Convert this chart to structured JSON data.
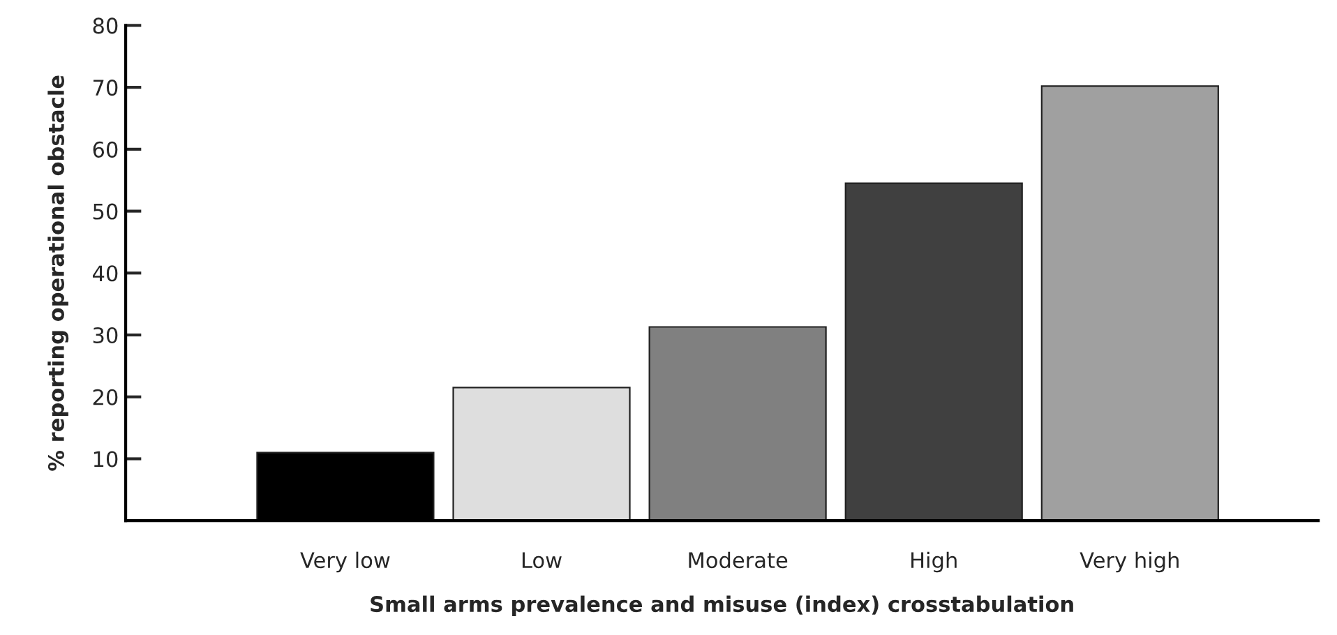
{
  "chart_data": {
    "type": "bar",
    "categories": [
      "Very low",
      "Low",
      "Moderate",
      "High",
      "Very high"
    ],
    "values": [
      11,
      21.5,
      31.3,
      54.5,
      70.2
    ],
    "colors": [
      "#000000",
      "#dedede",
      "#808080",
      "#404040",
      "#a0a0a0"
    ],
    "xlabel": "Small arms prevalence and misuse (index) crosstabulation",
    "ylabel": "% reporting operational obstacle",
    "ylim": [
      0,
      80
    ],
    "yticks": [
      10,
      20,
      30,
      40,
      50,
      60,
      70,
      80
    ],
    "grid": false,
    "legend": false
  }
}
